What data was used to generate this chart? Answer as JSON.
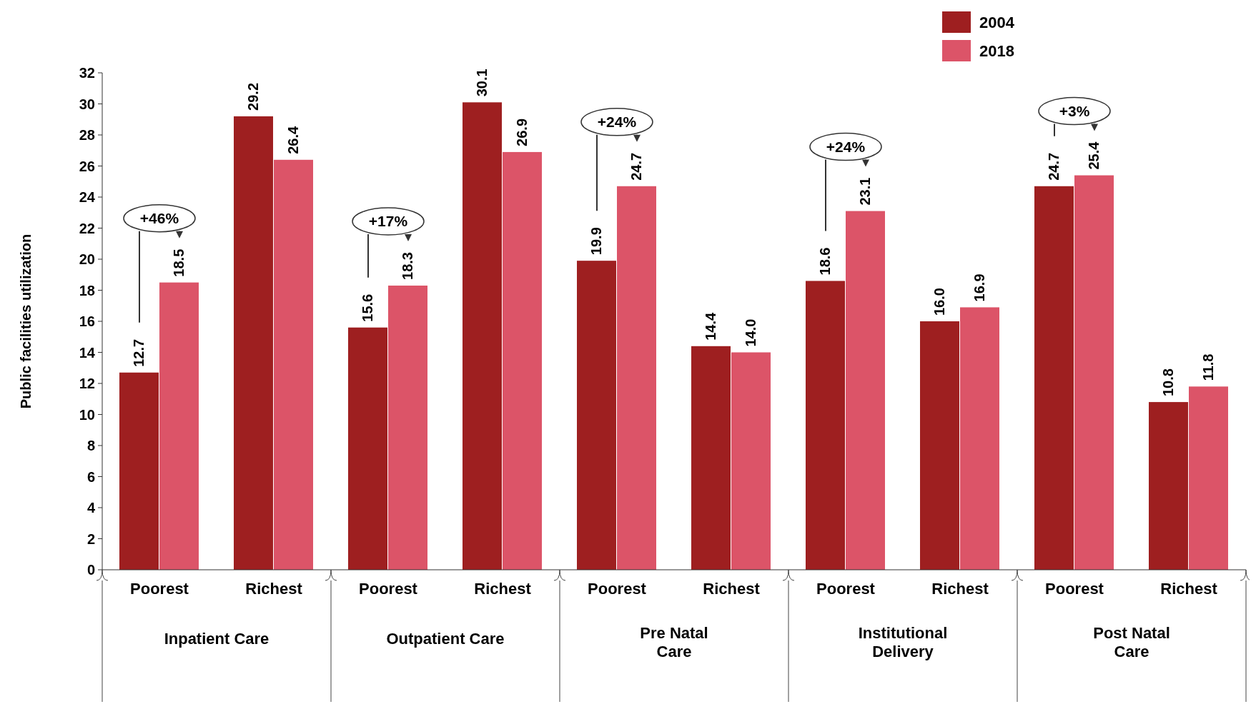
{
  "chart_data": {
    "type": "bar",
    "ylabel": "Public facilities utilization",
    "categories": [
      "Poorest",
      "Richest",
      "Poorest",
      "Richest",
      "Poorest",
      "Richest",
      "Poorest",
      "Richest",
      "Poorest",
      "Richest"
    ],
    "series": [
      {
        "name": "2004",
        "color": "#9e1f20",
        "values": [
          12.7,
          29.2,
          15.6,
          30.1,
          19.9,
          14.4,
          18.6,
          16.0,
          24.7,
          10.8
        ],
        "value_labels": [
          "12.7",
          "29.2",
          "15.6",
          "30.1",
          "19.9",
          "14.4",
          "18.6",
          "16.0",
          "24.7",
          "10.8"
        ]
      },
      {
        "name": "2018",
        "color": "#dc5468",
        "values": [
          18.5,
          26.4,
          18.3,
          26.9,
          24.7,
          14.0,
          23.1,
          16.9,
          25.4,
          11.8
        ],
        "value_labels": [
          "18.5",
          "26.4",
          "18.3",
          "26.9",
          "24.7",
          "14.0",
          "23.1",
          "16.9",
          "25.4",
          "11.8"
        ]
      }
    ],
    "annotations": [
      "Inpatient Care",
      "Outpatient Care",
      "Pre Natal Care",
      "Institutional Delivery",
      "Post Natal Care",
      "+46%",
      "+17%",
      "+24%",
      "+24%",
      "+3%"
    ],
    "ylim": [
      0,
      32
    ],
    "yticks": [
      0,
      2,
      4,
      6,
      8,
      10,
      12,
      14,
      16,
      18,
      20,
      22,
      24,
      26,
      28,
      30,
      32
    ],
    "grid": false,
    "legend": "top right"
  }
}
